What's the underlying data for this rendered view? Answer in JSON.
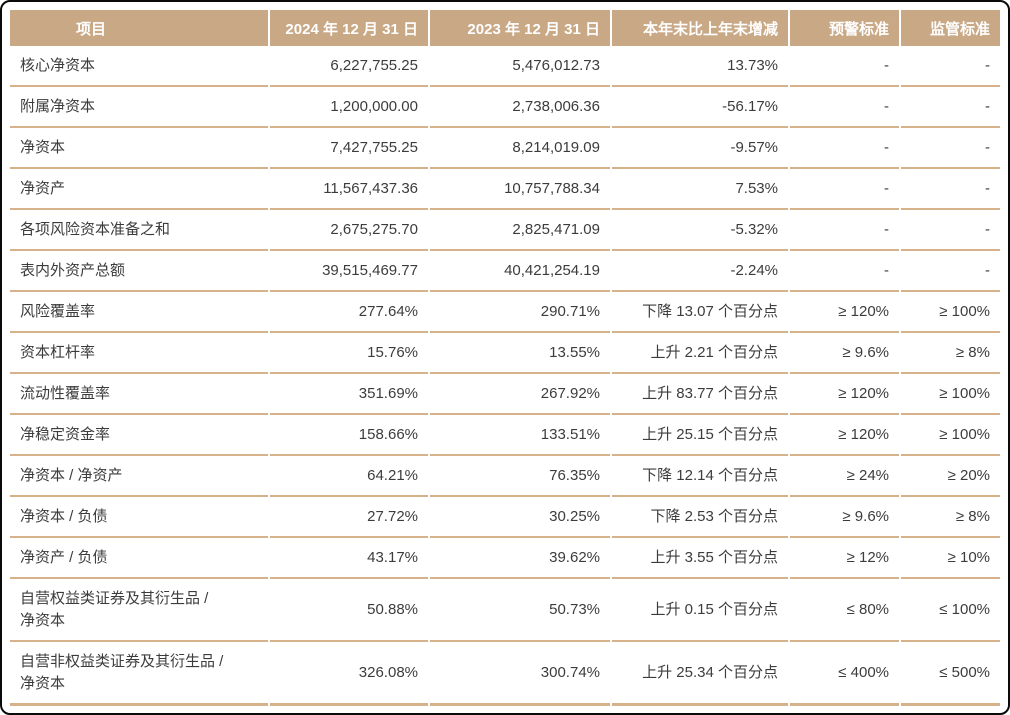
{
  "colors": {
    "header_bg": "#c9a886",
    "header_text": "#ffffff",
    "row_divider": "#d6b28a",
    "body_text": "#3c3c3c",
    "outer_border": "#0a0a0a",
    "page_bg": "#ffffff"
  },
  "table": {
    "columns": [
      "项目",
      "2024 年 12 月 31 日",
      "2023 年 12 月 31 日",
      "本年末比上年末增减",
      "预警标准",
      "监管标准"
    ],
    "rows": [
      {
        "item": "核心净资本",
        "v2024": "6,227,755.25",
        "v2023": "5,476,012.73",
        "change": "13.73%",
        "warning": "-",
        "regulatory": "-"
      },
      {
        "item": "附属净资本",
        "v2024": "1,200,000.00",
        "v2023": "2,738,006.36",
        "change": "-56.17%",
        "warning": "-",
        "regulatory": "-"
      },
      {
        "item": "净资本",
        "v2024": "7,427,755.25",
        "v2023": "8,214,019.09",
        "change": "-9.57%",
        "warning": "-",
        "regulatory": "-"
      },
      {
        "item": "净资产",
        "v2024": "11,567,437.36",
        "v2023": "10,757,788.34",
        "change": "7.53%",
        "warning": "-",
        "regulatory": "-"
      },
      {
        "item": "各项风险资本准备之和",
        "v2024": "2,675,275.70",
        "v2023": "2,825,471.09",
        "change": "-5.32%",
        "warning": "-",
        "regulatory": "-"
      },
      {
        "item": "表内外资产总额",
        "v2024": "39,515,469.77",
        "v2023": "40,421,254.19",
        "change": "-2.24%",
        "warning": "-",
        "regulatory": "-"
      },
      {
        "item": "风险覆盖率",
        "v2024": "277.64%",
        "v2023": "290.71%",
        "change": "下降 13.07 个百分点",
        "warning": "≥ 120%",
        "regulatory": "≥ 100%"
      },
      {
        "item": "资本杠杆率",
        "v2024": "15.76%",
        "v2023": "13.55%",
        "change": "上升 2.21 个百分点",
        "warning": "≥ 9.6%",
        "regulatory": "≥ 8%"
      },
      {
        "item": "流动性覆盖率",
        "v2024": "351.69%",
        "v2023": "267.92%",
        "change": "上升 83.77 个百分点",
        "warning": "≥ 120%",
        "regulatory": "≥ 100%"
      },
      {
        "item": "净稳定资金率",
        "v2024": "158.66%",
        "v2023": "133.51%",
        "change": "上升 25.15 个百分点",
        "warning": "≥ 120%",
        "regulatory": "≥ 100%"
      },
      {
        "item": "净资本 / 净资产",
        "v2024": "64.21%",
        "v2023": "76.35%",
        "change": "下降 12.14 个百分点",
        "warning": "≥ 24%",
        "regulatory": "≥ 20%"
      },
      {
        "item": "净资本 / 负债",
        "v2024": "27.72%",
        "v2023": "30.25%",
        "change": "下降 2.53 个百分点",
        "warning": "≥ 9.6%",
        "regulatory": "≥ 8%"
      },
      {
        "item": "净资产 / 负债",
        "v2024": "43.17%",
        "v2023": "39.62%",
        "change": "上升 3.55 个百分点",
        "warning": "≥ 12%",
        "regulatory": "≥ 10%"
      },
      {
        "item": "自营权益类证券及其衍生品 /\n净资本",
        "v2024": "50.88%",
        "v2023": "50.73%",
        "change": "上升 0.15 个百分点",
        "warning": "≤ 80%",
        "regulatory": "≤ 100%"
      },
      {
        "item": "自营非权益类证券及其衍生品 /\n净资本",
        "v2024": "326.08%",
        "v2023": "300.74%",
        "change": "上升 25.34 个百分点",
        "warning": "≤ 400%",
        "regulatory": "≤ 500%"
      }
    ]
  }
}
